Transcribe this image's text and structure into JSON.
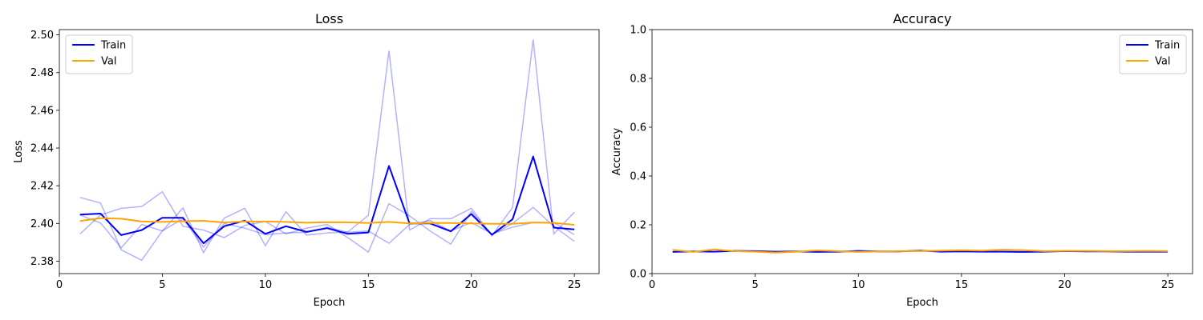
{
  "chart_data": [
    {
      "type": "line",
      "title": "Loss",
      "xlabel": "Epoch",
      "ylabel": "Loss",
      "xlim": [
        0,
        26.2
      ],
      "ylim": [
        2.3734,
        2.5028
      ],
      "xticks": [
        0,
        5,
        10,
        15,
        20,
        25
      ],
      "xtick_labels": [
        "0",
        "5",
        "10",
        "15",
        "20",
        "25"
      ],
      "yticks": [
        2.38,
        2.4,
        2.42,
        2.44,
        2.46,
        2.48,
        2.5
      ],
      "ytick_labels": [
        "2.38",
        "2.40",
        "2.42",
        "2.44",
        "2.46",
        "2.48",
        "2.50"
      ],
      "grid": false,
      "legend": "top-left",
      "x": [
        1,
        2,
        3,
        4,
        5,
        6,
        7,
        8,
        9,
        10,
        11,
        12,
        13,
        14,
        15,
        16,
        17,
        18,
        19,
        20,
        21,
        22,
        23,
        24,
        25
      ],
      "series": [
        {
          "name": "Train",
          "color": "#0000ff",
          "values": [
            2.4047,
            2.4052,
            2.3938,
            2.3965,
            2.403,
            2.403,
            2.3895,
            2.3985,
            2.4015,
            2.3945,
            2.3985,
            2.3955,
            2.3975,
            2.3945,
            2.3952,
            2.4305,
            2.4,
            2.4,
            2.3958,
            2.405,
            2.394,
            2.4022,
            2.4355,
            2.3978,
            2.3968
          ]
        },
        {
          "name": "Val",
          "color": "#ffa500",
          "values": [
            2.4013,
            2.4028,
            2.4025,
            2.401,
            2.4008,
            2.4012,
            2.4014,
            2.4005,
            2.401,
            2.401,
            2.4008,
            2.4004,
            2.4007,
            2.4006,
            2.4002,
            2.4008,
            2.4,
            2.4003,
            2.4002,
            2.4,
            2.3998,
            2.3998,
            2.4005,
            2.4003,
            2.3993
          ]
        }
      ],
      "faint_series": [
        {
          "color": "#0000ff",
          "values": [
            2.4138,
            2.4108,
            2.386,
            2.3805,
            2.396,
            2.4082,
            2.3845,
            2.4028,
            2.408,
            2.3882,
            2.4062,
            2.3938,
            2.395,
            2.3955,
            2.4043,
            2.4915,
            2.3965,
            2.4025,
            2.4025,
            2.408,
            2.3935,
            2.4085,
            2.4975,
            2.3945,
            2.406
          ]
        },
        {
          "color": "#0000ff",
          "values": [
            2.3945,
            2.4045,
            2.408,
            2.409,
            2.4168,
            2.3985,
            2.3965,
            2.3925,
            2.399,
            2.401,
            2.3945,
            2.3975,
            2.3995,
            2.3925,
            2.3848,
            2.4105,
            2.404,
            2.396,
            2.389,
            2.4065,
            2.394,
            2.4,
            2.4085,
            2.3985,
            2.3905
          ]
        },
        {
          "color": "#0000ff",
          "values": [
            2.4045,
            2.4002,
            2.387,
            2.3995,
            2.396,
            2.4025,
            2.3875,
            2.3999,
            2.3975,
            2.394,
            2.395,
            2.3953,
            2.398,
            2.3953,
            2.396,
            2.3895,
            2.3995,
            2.4015,
            2.396,
            2.4005,
            2.3945,
            2.398,
            2.4005,
            2.4005,
            2.394
          ]
        }
      ]
    },
    {
      "type": "line",
      "title": "Accuracy",
      "xlabel": "Epoch",
      "ylabel": "Accuracy",
      "xlim": [
        0,
        26.2
      ],
      "ylim": [
        0,
        1
      ],
      "xticks": [
        0,
        5,
        10,
        15,
        20,
        25
      ],
      "xtick_labels": [
        "0",
        "5",
        "10",
        "15",
        "20",
        "25"
      ],
      "yticks": [
        0.0,
        0.2,
        0.4,
        0.6,
        0.8,
        1.0
      ],
      "ytick_labels": [
        "0.0",
        "0.2",
        "0.4",
        "0.6",
        "0.8",
        "1.0"
      ],
      "grid": false,
      "legend": "top-right",
      "x": [
        1,
        2,
        3,
        4,
        5,
        6,
        7,
        8,
        9,
        10,
        11,
        12,
        13,
        14,
        15,
        16,
        17,
        18,
        19,
        20,
        21,
        22,
        23,
        24,
        25
      ],
      "series": [
        {
          "name": "Train",
          "color": "#0000ff",
          "values": [
            0.089,
            0.091,
            0.09,
            0.093,
            0.092,
            0.09,
            0.091,
            0.089,
            0.09,
            0.093,
            0.091,
            0.091,
            0.094,
            0.09,
            0.091,
            0.09,
            0.09,
            0.089,
            0.09,
            0.092,
            0.091,
            0.091,
            0.09,
            0.09,
            0.09
          ]
        },
        {
          "name": "Val",
          "color": "#ffa500",
          "values": [
            0.097,
            0.089,
            0.099,
            0.092,
            0.09,
            0.086,
            0.09,
            0.095,
            0.092,
            0.089,
            0.091,
            0.092,
            0.092,
            0.094,
            0.096,
            0.094,
            0.098,
            0.096,
            0.092,
            0.093,
            0.093,
            0.092,
            0.092,
            0.093,
            0.092
          ]
        }
      ],
      "faint_series": []
    }
  ]
}
